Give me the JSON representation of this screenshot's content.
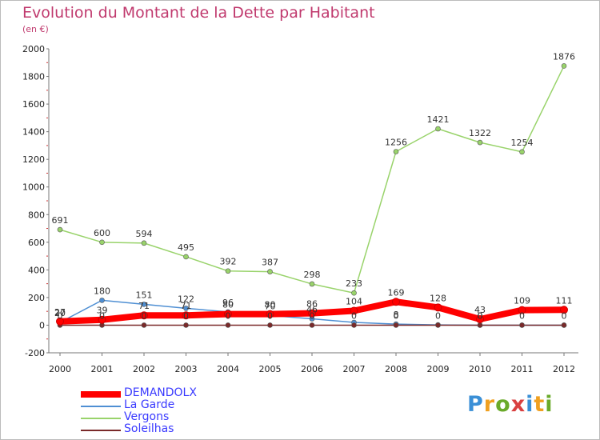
{
  "header": {
    "title": "Evolution du Montant de la Dette par Habitant",
    "subtitle": "(en €)"
  },
  "logo": {
    "text": "Proxiti",
    "colors": [
      "#3a8fd6",
      "#f0a020",
      "#6aaa2a",
      "#d94040",
      "#3a8fd6",
      "#f0a020",
      "#6aaa2a"
    ]
  },
  "chart_data": {
    "type": "line",
    "x": [
      "2000",
      "2001",
      "2002",
      "2003",
      "2004",
      "2005",
      "2006",
      "2007",
      "2008",
      "2009",
      "2010",
      "2011",
      "2012"
    ],
    "ylim": [
      -200,
      2000
    ],
    "yticks": [
      "-200",
      "0",
      "200",
      "400",
      "600",
      "800",
      "1000",
      "1200",
      "1400",
      "1600",
      "1800",
      "2000"
    ],
    "grid": false,
    "legend_position": "bottom-left",
    "series": [
      {
        "name": "Vergons",
        "color": "#99d36b",
        "values": [
          691,
          600,
          594,
          495,
          392,
          387,
          298,
          233,
          1256,
          1421,
          1322,
          1254,
          1876
        ],
        "labels": [
          "691",
          "600",
          "594",
          "495",
          "392",
          "387",
          "298",
          "233",
          "1256",
          "1421",
          "1322",
          "1254",
          "1876"
        ]
      },
      {
        "name": "La Garde",
        "color": "#4f8fd3",
        "values": [
          20,
          180,
          151,
          122,
          96,
          70,
          46,
          20,
          8,
          2,
          0,
          0,
          0
        ],
        "labels": [
          "20",
          "180",
          "151",
          "122",
          "96",
          "70",
          "46",
          "",
          "8",
          "",
          "0",
          "",
          ""
        ]
      },
      {
        "name": "Soleilhas",
        "color": "#7a2a2a",
        "values": [
          0,
          0,
          0,
          0,
          0,
          0,
          0,
          0,
          0,
          0,
          0,
          0,
          0
        ],
        "labels": [
          "0",
          "0",
          "0",
          "0",
          "0",
          "0",
          "0",
          "0",
          "0",
          "0",
          "0",
          "0",
          "0"
        ]
      },
      {
        "name": "DEMANDOLX",
        "color": "#ff0000",
        "values": [
          27,
          39,
          71,
          71,
          80,
          80,
          86,
          104,
          169,
          128,
          43,
          109,
          111
        ],
        "labels": [
          "27",
          "39",
          "71",
          "71",
          "80",
          "80",
          "86",
          "104",
          "169",
          "128",
          "43",
          "109",
          "111"
        ]
      }
    ]
  },
  "legend": [
    {
      "name": "DEMANDOLX",
      "color": "#ff0000"
    },
    {
      "name": "La Garde",
      "color": "#4f8fd3"
    },
    {
      "name": "Vergons",
      "color": "#99d36b"
    },
    {
      "name": "Soleilhas",
      "color": "#7a2a2a"
    }
  ]
}
